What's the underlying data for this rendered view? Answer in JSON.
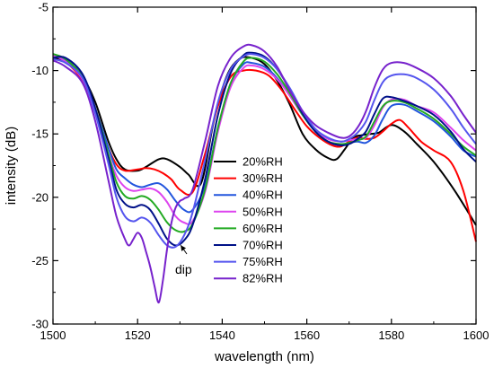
{
  "chart_data": {
    "type": "line",
    "title": "",
    "xlabel": "wavelength (nm)",
    "ylabel": "intensity (dB)",
    "xlim": [
      1500,
      1600
    ],
    "ylim": [
      -30,
      -5
    ],
    "xticks": [
      1500,
      1520,
      1540,
      1560,
      1580,
      1600
    ],
    "yticks": [
      -30,
      -25,
      -20,
      -15,
      -10,
      -5
    ],
    "grid": false,
    "legend_position": "center",
    "annotation": {
      "text": "dip",
      "arrow_target": [
        1527,
        -23.5
      ]
    },
    "series": [
      {
        "name": "20%RH",
        "color": "#000000",
        "x": [
          1500,
          1503,
          1507,
          1510,
          1513,
          1515,
          1517,
          1520,
          1522,
          1525,
          1527,
          1530,
          1532,
          1535,
          1538,
          1541,
          1544,
          1547,
          1550,
          1553,
          1556,
          1559,
          1562,
          1565,
          1567,
          1569,
          1571,
          1573,
          1575,
          1577,
          1580,
          1583,
          1586,
          1590,
          1595,
          1600
        ],
        "y": [
          -9.0,
          -9.3,
          -10.5,
          -12.5,
          -15.5,
          -17.0,
          -17.8,
          -17.9,
          -17.6,
          -17.0,
          -17.0,
          -17.6,
          -18.2,
          -18.9,
          -14.0,
          -10.5,
          -9.1,
          -9.0,
          -9.5,
          -10.8,
          -12.7,
          -15.0,
          -16.2,
          -16.9,
          -17.0,
          -16.2,
          -15.3,
          -15.1,
          -15.0,
          -14.9,
          -14.3,
          -14.8,
          -15.8,
          -17.2,
          -19.5,
          -22.2
        ]
      },
      {
        "name": "30%RH",
        "color": "#ff0000",
        "x": [
          1500,
          1503,
          1507,
          1510,
          1513,
          1515,
          1517,
          1520,
          1522,
          1524,
          1526,
          1528,
          1530,
          1533,
          1536,
          1539,
          1542,
          1545,
          1548,
          1551,
          1554,
          1557,
          1560,
          1563,
          1566,
          1568,
          1570,
          1572,
          1574,
          1576,
          1578,
          1580,
          1582,
          1584,
          1587,
          1590,
          1594,
          1597,
          1600
        ],
        "y": [
          -8.8,
          -9.3,
          -10.8,
          -13.0,
          -16.0,
          -17.4,
          -17.9,
          -17.8,
          -17.7,
          -17.8,
          -18.1,
          -18.6,
          -19.4,
          -19.6,
          -16.5,
          -12.8,
          -10.5,
          -10.0,
          -10.0,
          -10.4,
          -11.5,
          -13.0,
          -14.4,
          -15.3,
          -15.9,
          -16.0,
          -15.6,
          -15.3,
          -15.4,
          -15.3,
          -14.8,
          -14.2,
          -13.9,
          -14.5,
          -15.6,
          -16.3,
          -17.2,
          -19.5,
          -23.5
        ]
      },
      {
        "name": "40%RH",
        "color": "#2255dd",
        "x": [
          1500,
          1503,
          1507,
          1510,
          1513,
          1515,
          1517,
          1519,
          1521,
          1523,
          1525,
          1527,
          1529,
          1531,
          1533,
          1536,
          1539,
          1542,
          1545,
          1547,
          1550,
          1553,
          1556,
          1559,
          1562,
          1565,
          1568,
          1570,
          1572,
          1574,
          1576,
          1578,
          1580,
          1583,
          1586,
          1590,
          1594,
          1597,
          1600
        ],
        "y": [
          -8.7,
          -9.2,
          -10.6,
          -13.0,
          -16.0,
          -17.8,
          -18.5,
          -19.0,
          -19.2,
          -19.0,
          -18.9,
          -19.4,
          -20.3,
          -21.0,
          -21.0,
          -19.0,
          -14.5,
          -11.0,
          -9.5,
          -9.4,
          -9.7,
          -10.6,
          -12.0,
          -13.5,
          -14.8,
          -15.6,
          -15.9,
          -15.7,
          -15.6,
          -15.7,
          -15.1,
          -13.8,
          -12.8,
          -12.7,
          -13.2,
          -14.0,
          -15.2,
          -16.3,
          -16.8
        ]
      },
      {
        "name": "50%RH",
        "color": "#dd44ee",
        "x": [
          1500,
          1503,
          1507,
          1510,
          1513,
          1515,
          1517,
          1519,
          1521,
          1523,
          1525,
          1527,
          1529,
          1531,
          1533,
          1536,
          1539,
          1542,
          1545,
          1547,
          1550,
          1553,
          1556,
          1559,
          1562,
          1565,
          1568,
          1570,
          1572,
          1574,
          1576,
          1578,
          1580,
          1583,
          1586,
          1590,
          1594,
          1597,
          1600
        ],
        "y": [
          -8.8,
          -9.3,
          -10.7,
          -13.2,
          -16.5,
          -18.3,
          -19.2,
          -19.5,
          -19.4,
          -19.3,
          -19.6,
          -20.4,
          -21.5,
          -22.0,
          -21.9,
          -19.5,
          -14.8,
          -11.3,
          -9.8,
          -9.6,
          -9.9,
          -10.7,
          -12.0,
          -13.5,
          -14.7,
          -15.4,
          -15.6,
          -15.5,
          -15.4,
          -15.3,
          -14.3,
          -12.9,
          -12.3,
          -12.3,
          -12.8,
          -13.3,
          -14.5,
          -15.5,
          -16.3
        ]
      },
      {
        "name": "60%RH",
        "color": "#22aa22",
        "x": [
          1500,
          1503,
          1507,
          1510,
          1513,
          1515,
          1517,
          1519,
          1521,
          1523,
          1525,
          1527,
          1529,
          1531,
          1533,
          1536,
          1539,
          1542,
          1545,
          1547,
          1550,
          1553,
          1556,
          1559,
          1562,
          1565,
          1568,
          1570,
          1572,
          1574,
          1576,
          1578,
          1580,
          1583,
          1586,
          1590,
          1594,
          1597,
          1600
        ],
        "y": [
          -8.7,
          -9.1,
          -10.5,
          -13.0,
          -16.5,
          -18.8,
          -19.9,
          -20.1,
          -19.9,
          -20.2,
          -21.0,
          -22.0,
          -22.6,
          -22.7,
          -22.1,
          -19.3,
          -14.5,
          -11.0,
          -9.3,
          -9.0,
          -9.3,
          -10.3,
          -11.8,
          -13.5,
          -14.8,
          -15.6,
          -15.8,
          -15.7,
          -15.5,
          -15.2,
          -14.0,
          -12.8,
          -12.4,
          -12.5,
          -13.0,
          -13.8,
          -15.0,
          -16.0,
          -16.7
        ]
      },
      {
        "name": "70%RH",
        "color": "#001188",
        "x": [
          1500,
          1503,
          1507,
          1510,
          1513,
          1515,
          1517,
          1519,
          1521,
          1523,
          1525,
          1527,
          1529,
          1531,
          1533,
          1536,
          1539,
          1542,
          1545,
          1547,
          1550,
          1553,
          1556,
          1559,
          1562,
          1565,
          1568,
          1570,
          1572,
          1574,
          1576,
          1578,
          1580,
          1583,
          1586,
          1590,
          1594,
          1597,
          1600
        ],
        "y": [
          -9.0,
          -9.0,
          -10.3,
          -13.0,
          -16.8,
          -19.4,
          -20.5,
          -20.8,
          -20.6,
          -21.0,
          -22.1,
          -23.3,
          -23.8,
          -23.4,
          -22.2,
          -18.5,
          -13.5,
          -10.2,
          -8.8,
          -8.6,
          -8.9,
          -9.9,
          -11.5,
          -13.4,
          -14.8,
          -15.6,
          -15.9,
          -15.8,
          -15.4,
          -14.8,
          -13.4,
          -12.2,
          -12.1,
          -12.4,
          -12.8,
          -13.5,
          -14.8,
          -16.2,
          -17.2
        ]
      },
      {
        "name": "75%RH",
        "color": "#5555ee",
        "x": [
          1500,
          1503,
          1507,
          1510,
          1513,
          1515,
          1517,
          1519,
          1521,
          1523,
          1525,
          1527,
          1529,
          1531,
          1533,
          1536,
          1539,
          1542,
          1545,
          1547,
          1550,
          1553,
          1556,
          1559,
          1562,
          1565,
          1568,
          1570,
          1572,
          1574,
          1576,
          1578,
          1580,
          1583,
          1586,
          1590,
          1594,
          1597,
          1600
        ],
        "y": [
          -9.1,
          -9.4,
          -10.6,
          -13.4,
          -17.2,
          -20.0,
          -21.5,
          -21.9,
          -21.6,
          -22.0,
          -23.0,
          -23.8,
          -23.9,
          -23.0,
          -21.2,
          -17.0,
          -12.5,
          -9.9,
          -8.9,
          -8.7,
          -9.0,
          -9.9,
          -11.4,
          -13.2,
          -14.6,
          -15.3,
          -15.6,
          -15.4,
          -14.9,
          -14.0,
          -12.3,
          -10.9,
          -10.4,
          -10.3,
          -10.6,
          -11.5,
          -13.0,
          -14.5,
          -15.8
        ]
      },
      {
        "name": "82%RH",
        "color": "#7722cc",
        "x": [
          1500,
          1503,
          1507,
          1510,
          1513,
          1515,
          1517,
          1518,
          1519,
          1520,
          1521,
          1522,
          1523,
          1524,
          1525,
          1526,
          1527,
          1528,
          1529,
          1530,
          1531,
          1533,
          1536,
          1539,
          1542,
          1545,
          1547,
          1550,
          1553,
          1556,
          1559,
          1562,
          1565,
          1568,
          1570,
          1572,
          1574,
          1576,
          1578,
          1580,
          1583,
          1586,
          1590,
          1594,
          1597,
          1600
        ],
        "y": [
          -9.2,
          -9.7,
          -11.0,
          -14.0,
          -18.5,
          -21.5,
          -23.3,
          -23.8,
          -23.3,
          -22.8,
          -23.2,
          -24.3,
          -25.5,
          -27.0,
          -28.3,
          -26.5,
          -24.0,
          -22.0,
          -20.8,
          -20.3,
          -20.1,
          -19.4,
          -15.5,
          -11.2,
          -9.0,
          -8.1,
          -8.0,
          -8.5,
          -9.7,
          -11.6,
          -13.2,
          -14.3,
          -14.9,
          -15.3,
          -15.2,
          -14.5,
          -13.2,
          -11.3,
          -9.9,
          -9.4,
          -9.4,
          -9.8,
          -10.6,
          -12.0,
          -13.5,
          -14.9
        ]
      }
    ]
  }
}
